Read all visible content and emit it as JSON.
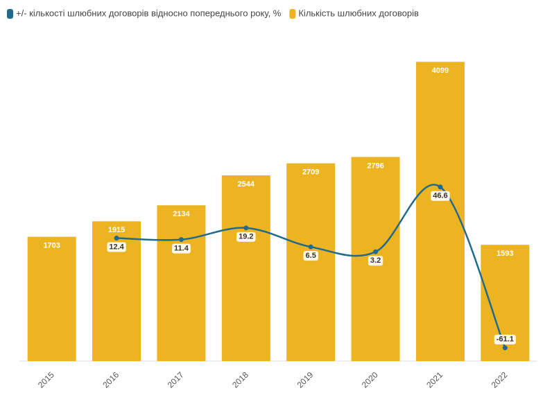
{
  "chart_data": {
    "type": "bar",
    "categories": [
      "2015",
      "2016",
      "2017",
      "2018",
      "2019",
      "2020",
      "2021",
      "2022"
    ],
    "series": [
      {
        "name": "+/- кількості шлюбних договорів відносно попереднього року, %",
        "type": "line",
        "axis": "y2",
        "color": "#1f6a8f",
        "values": [
          null,
          12.4,
          11.4,
          19.2,
          6.5,
          3.2,
          46.6,
          -61.1
        ]
      },
      {
        "name": "Кількість шлюбних договорів",
        "type": "bar",
        "color": "#edb421",
        "values": [
          1703,
          1915,
          2134,
          2544,
          2709,
          2796,
          4099,
          1593
        ]
      }
    ],
    "ylim": [
      0,
      4500
    ],
    "y2lim": [
      -70,
      150
    ]
  }
}
